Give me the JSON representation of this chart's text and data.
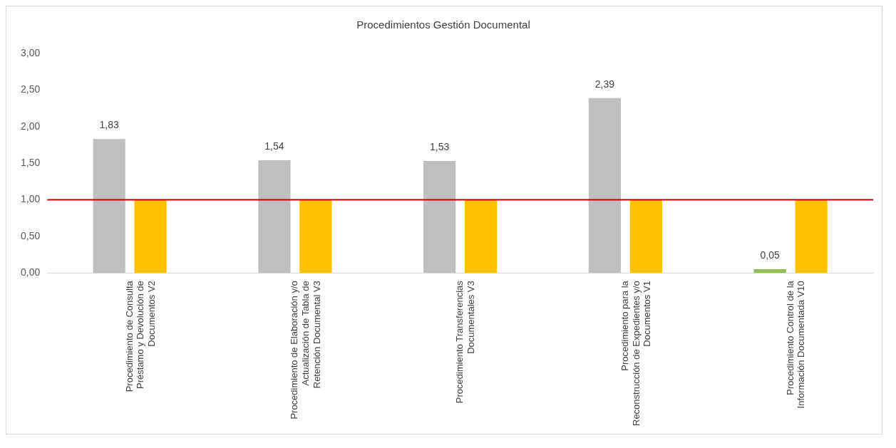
{
  "chart_data": {
    "type": "bar",
    "title": "Procedimientos Gestión Documental",
    "categories": [
      "Procedimiento de Consulta\nPréstamo y Devolución de\nDocumentos V2",
      "Procedimiento de Elaboración y/o\nActualización de Tabla de\nRetención Documental V3",
      "Procedimiento Transferencias\nDocumentales V3",
      "Procedimiento para la\nReconstrucción de Expedientes y/o\nDocumentos V1",
      "Procedimiento Control de la\nInformación Documentada V10"
    ],
    "series": [
      {
        "colors": [
          "#bfbfbf",
          "#bfbfbf",
          "#bfbfbf",
          "#bfbfbf",
          "#92c050"
        ],
        "values": [
          1.83,
          1.54,
          1.53,
          2.39,
          0.05
        ],
        "value_labels": [
          "1,83",
          "1,54",
          "1,53",
          "2,39",
          "0,05"
        ]
      },
      {
        "color": "#ffc000",
        "values": [
          1,
          1,
          1,
          1,
          1
        ]
      }
    ],
    "ylim": [
      0,
      3
    ],
    "yticks": [
      {
        "value": 0,
        "label": "0,00"
      },
      {
        "value": 0.5,
        "label": "0,50"
      },
      {
        "value": 1,
        "label": "1,00"
      },
      {
        "value": 1.5,
        "label": "1,50"
      },
      {
        "value": 2,
        "label": "2,00"
      },
      {
        "value": 2.5,
        "label": "2,50"
      },
      {
        "value": 3,
        "label": "3,00"
      }
    ],
    "ref_lines": [
      {
        "axis": "y",
        "value": 1,
        "color": "#c00000"
      }
    ],
    "grid": false,
    "legend": false
  }
}
